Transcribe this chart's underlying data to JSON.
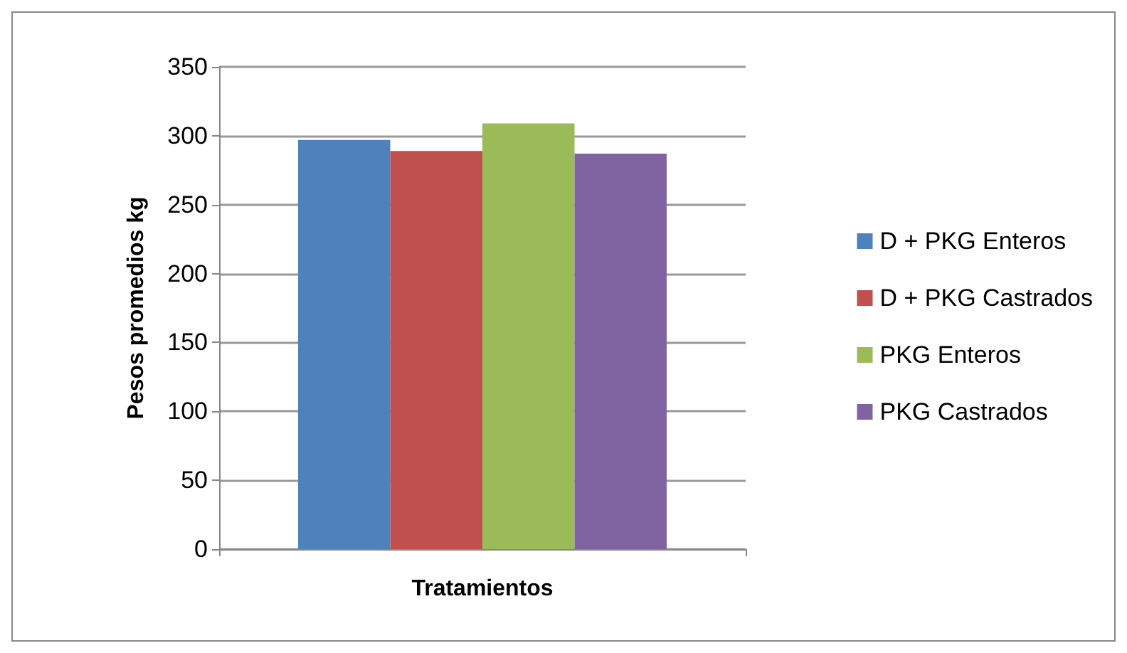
{
  "chart_data": {
    "type": "bar",
    "xlabel": "Tratamientos",
    "ylabel": "Pesos promedios kg",
    "categories": [
      null
    ],
    "series": [
      {
        "name": "D + PKG Enteros",
        "color": "#4f81bd",
        "values": [
          297
        ]
      },
      {
        "name": "D + PKG Castrados",
        "color": "#c0504d",
        "values": [
          289
        ]
      },
      {
        "name": "PKG Enteros",
        "color": "#9bbb59",
        "values": [
          309
        ]
      },
      {
        "name": "PKG Castrados",
        "color": "#8064a2",
        "values": [
          287
        ]
      }
    ],
    "ylim": [
      0,
      350
    ],
    "yticks": [
      0,
      50,
      100,
      150,
      200,
      250,
      300,
      350
    ],
    "grid": "y",
    "legend": "right"
  }
}
